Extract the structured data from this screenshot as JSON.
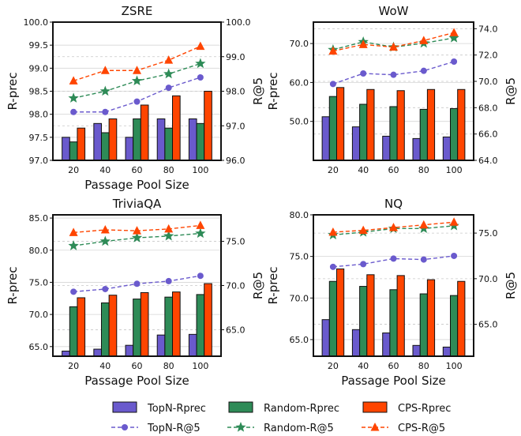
{
  "legend": {
    "items": [
      {
        "label": "TopN-Rprec",
        "kind": "bar",
        "color": "#6a5acd"
      },
      {
        "label": "Random-Rprec",
        "kind": "bar",
        "color": "#2e8b57"
      },
      {
        "label": "CPS-Rprec",
        "kind": "bar",
        "color": "#ff4500"
      },
      {
        "label": "TopN-R@5",
        "kind": "line",
        "color": "#6a5acd",
        "marker": "circle"
      },
      {
        "label": "Random-R@5",
        "kind": "line",
        "color": "#2e8b57",
        "marker": "star"
      },
      {
        "label": "CPS-R@5",
        "kind": "line",
        "color": "#ff4500",
        "marker": "triangle"
      }
    ]
  },
  "chart_data": [
    {
      "type": "bar+line",
      "title": "ZSRE",
      "categories": [
        "20",
        "40",
        "60",
        "80",
        "100"
      ],
      "xlabel": "Passage Pool Size",
      "ylabel": "R-prec",
      "ylabel_right": "R@5",
      "ylim": [
        97.0,
        100.0
      ],
      "ylim_right": [
        96.0,
        100.0
      ],
      "yticks": [
        "97.0",
        "97.5",
        "98.0",
        "98.5",
        "99.0",
        "99.5",
        "100.0"
      ],
      "yticks_right": [
        "96.0",
        "97.0",
        "98.0",
        "99.0",
        "100.0"
      ],
      "bars": [
        {
          "name": "TopN-Rprec",
          "values": [
            97.5,
            97.8,
            97.5,
            97.9,
            97.9
          ]
        },
        {
          "name": "Random-Rprec",
          "values": [
            97.4,
            97.6,
            97.9,
            97.7,
            97.8
          ]
        },
        {
          "name": "CPS-Rprec",
          "values": [
            97.7,
            97.9,
            98.2,
            98.4,
            98.5
          ]
        }
      ],
      "lines": [
        {
          "name": "TopN-R@5",
          "values": [
            97.4,
            97.4,
            97.7,
            98.1,
            98.4
          ]
        },
        {
          "name": "Random-R@5",
          "values": [
            97.8,
            98.0,
            98.3,
            98.5,
            98.8
          ]
        },
        {
          "name": "CPS-R@5",
          "values": [
            98.3,
            98.6,
            98.6,
            98.9,
            99.3
          ]
        }
      ]
    },
    {
      "type": "bar+line",
      "title": "WoW",
      "categories": [
        "20",
        "40",
        "60",
        "80",
        "100"
      ],
      "xlabel": "",
      "ylabel": "R-prec",
      "ylabel_right": "R@5",
      "ylim": [
        40.0,
        75.5
      ],
      "ylim_right": [
        64.0,
        74.5
      ],
      "yticks": [
        "50.0",
        "60.0",
        "70.0"
      ],
      "yticks_right": [
        "64.0",
        "66.0",
        "68.0",
        "70.0",
        "72.0",
        "74.0"
      ],
      "bars": [
        {
          "name": "TopN-Rprec",
          "values": [
            51.2,
            48.6,
            46.2,
            45.6,
            46.0
          ]
        },
        {
          "name": "Random-Rprec",
          "values": [
            56.4,
            54.4,
            53.8,
            53.1,
            53.3
          ]
        },
        {
          "name": "CPS-Rprec",
          "values": [
            58.7,
            58.2,
            57.9,
            58.2,
            58.2
          ]
        }
      ],
      "lines": [
        {
          "name": "TopN-R@5",
          "values": [
            69.8,
            70.6,
            70.5,
            70.8,
            71.5
          ]
        },
        {
          "name": "Random-R@5",
          "values": [
            72.4,
            73.0,
            72.6,
            72.9,
            73.3
          ]
        },
        {
          "name": "CPS-R@5",
          "values": [
            72.3,
            72.8,
            72.6,
            73.1,
            73.7
          ]
        }
      ]
    },
    {
      "type": "bar+line",
      "title": "TriviaQA",
      "categories": [
        "20",
        "40",
        "60",
        "80",
        "100"
      ],
      "xlabel": "Passage Pool Size",
      "ylabel": "R-prec",
      "ylabel_right": "R@5",
      "ylim": [
        63.5,
        85.5
      ],
      "ylim_right": [
        62.0,
        78.0
      ],
      "yticks": [
        "65.0",
        "70.0",
        "75.0",
        "80.0",
        "85.0"
      ],
      "yticks_right": [
        "65.0",
        "70.0",
        "75.0"
      ],
      "bars": [
        {
          "name": "TopN-Rprec",
          "values": [
            64.3,
            64.6,
            65.2,
            66.8,
            66.9
          ]
        },
        {
          "name": "Random-Rprec",
          "values": [
            71.2,
            71.8,
            72.4,
            72.7,
            73.1
          ]
        },
        {
          "name": "CPS-Rprec",
          "values": [
            72.6,
            73.0,
            73.4,
            73.5,
            74.8
          ]
        }
      ],
      "lines": [
        {
          "name": "TopN-R@5",
          "values": [
            69.3,
            69.6,
            70.2,
            70.5,
            71.1
          ]
        },
        {
          "name": "Random-R@5",
          "values": [
            74.5,
            75.0,
            75.4,
            75.6,
            75.9
          ]
        },
        {
          "name": "CPS-R@5",
          "values": [
            76.0,
            76.3,
            76.2,
            76.4,
            76.8
          ]
        }
      ]
    },
    {
      "type": "bar+line",
      "title": "NQ",
      "categories": [
        "20",
        "40",
        "60",
        "80",
        "100"
      ],
      "xlabel": "Passage Pool Size",
      "ylabel": "R-prec",
      "ylabel_right": "R@5",
      "ylim": [
        63.0,
        80.0
      ],
      "ylim_right": [
        61.5,
        77.0
      ],
      "yticks": [
        "65.0",
        "70.0",
        "75.0",
        "80.0"
      ],
      "yticks_right": [
        "65.0",
        "70.0",
        "75.0"
      ],
      "bars": [
        {
          "name": "TopN-Rprec",
          "values": [
            67.4,
            66.2,
            65.8,
            64.3,
            64.1
          ]
        },
        {
          "name": "Random-Rprec",
          "values": [
            72.0,
            71.4,
            71.0,
            70.5,
            70.3
          ]
        },
        {
          "name": "CPS-Rprec",
          "values": [
            73.5,
            72.8,
            72.7,
            72.2,
            72.0
          ]
        }
      ],
      "lines": [
        {
          "name": "TopN-R@5",
          "values": [
            71.3,
            71.6,
            72.2,
            72.1,
            72.5
          ]
        },
        {
          "name": "Random-R@5",
          "values": [
            74.8,
            75.1,
            75.5,
            75.5,
            75.8
          ]
        },
        {
          "name": "CPS-R@5",
          "values": [
            75.1,
            75.3,
            75.6,
            75.9,
            76.2
          ]
        }
      ]
    }
  ]
}
